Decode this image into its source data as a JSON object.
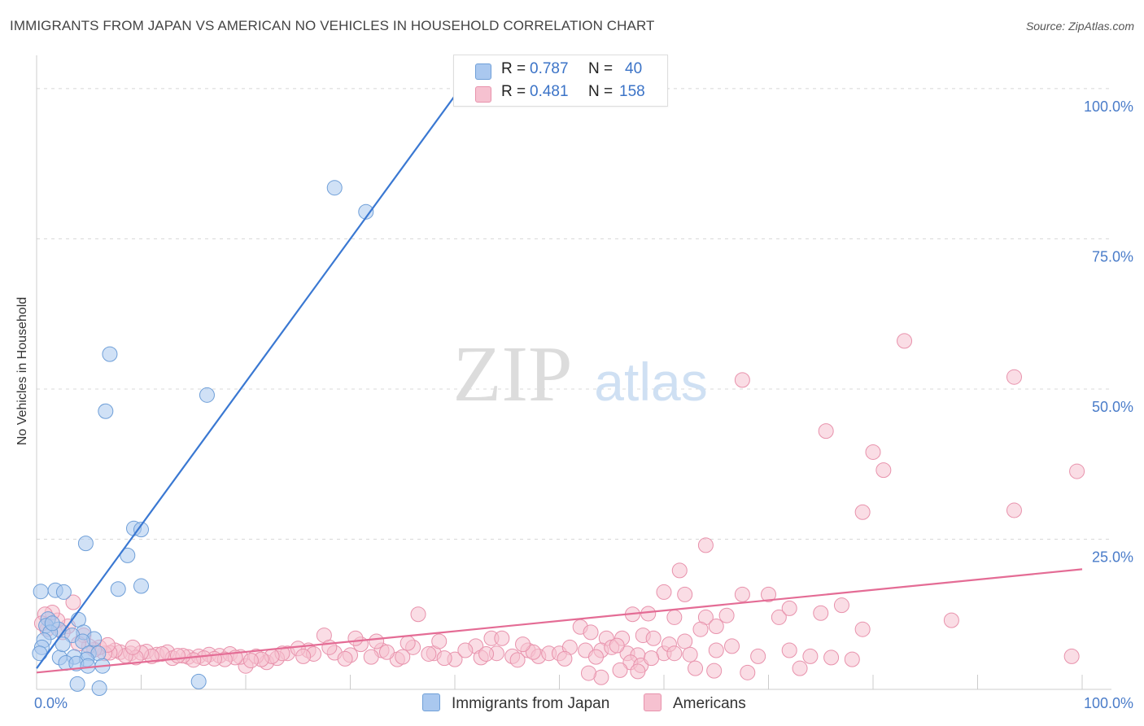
{
  "title": "IMMIGRANTS FROM JAPAN VS AMERICAN NO VEHICLES IN HOUSEHOLD CORRELATION CHART",
  "source": "Source: ZipAtlas.com",
  "watermark": {
    "zip": "ZIP",
    "atlas": "atlas"
  },
  "colors": {
    "blue_fill": "#aac8ef",
    "blue_stroke": "#6f9fd8",
    "blue_line": "#3a78d2",
    "pink_fill": "#f6c1d0",
    "pink_stroke": "#e892ac",
    "pink_line": "#e46c95",
    "tick_label": "#4a7cc9",
    "grid": "#d8d8d8"
  },
  "legend_top": [
    {
      "r_label": "R =",
      "r_value": "0.787",
      "n_label": "N =",
      "n_value": "40"
    },
    {
      "r_label": "R =",
      "r_value": "0.481",
      "n_label": "N =",
      "n_value": "158"
    }
  ],
  "chart_data": {
    "type": "scatter",
    "title": "IMMIGRANTS FROM JAPAN VS AMERICAN NO VEHICLES IN HOUSEHOLD CORRELATION CHART",
    "xlabel": "",
    "ylabel": "No Vehicles in Household",
    "xlim": [
      0,
      100
    ],
    "ylim": [
      0,
      105
    ],
    "x_tick_labels": [
      {
        "value": 0,
        "label": "0.0%"
      },
      {
        "value": 100,
        "label": "100.0%"
      }
    ],
    "y_tick_labels": [
      {
        "value": 25,
        "label": "25.0%"
      },
      {
        "value": 50,
        "label": "50.0%"
      },
      {
        "value": 75,
        "label": "75.0%"
      },
      {
        "value": 100,
        "label": "100.0%"
      }
    ],
    "legend": [
      "Immigrants from Japan",
      "Americans"
    ],
    "series": [
      {
        "name": "Immigrants from Japan",
        "R": 0.787,
        "N": 40,
        "trend": {
          "x0": 0,
          "y0": 3.5,
          "x1": 40.5,
          "y1": 100
        },
        "points": [
          [
            28.5,
            83.5
          ],
          [
            31.5,
            79.5
          ],
          [
            7.0,
            55.8
          ],
          [
            6.6,
            46.3
          ],
          [
            16.3,
            49.0
          ],
          [
            9.3,
            26.8
          ],
          [
            10.0,
            26.6
          ],
          [
            4.7,
            24.3
          ],
          [
            8.7,
            22.3
          ],
          [
            7.8,
            16.7
          ],
          [
            10.0,
            17.2
          ],
          [
            0.4,
            16.3
          ],
          [
            1.8,
            16.5
          ],
          [
            2.6,
            16.2
          ],
          [
            1.1,
            11.7
          ],
          [
            4.0,
            11.6
          ],
          [
            0.9,
            10.6
          ],
          [
            2.1,
            10.0
          ],
          [
            1.3,
            9.5
          ],
          [
            4.5,
            9.5
          ],
          [
            0.7,
            8.2
          ],
          [
            3.4,
            9.0
          ],
          [
            5.5,
            8.4
          ],
          [
            4.4,
            8.0
          ],
          [
            0.5,
            7.0
          ],
          [
            5.0,
            6.0
          ],
          [
            5.9,
            6.0
          ],
          [
            2.2,
            5.3
          ],
          [
            3.6,
            5.4
          ],
          [
            4.8,
            5.0
          ],
          [
            2.8,
            4.4
          ],
          [
            3.8,
            4.3
          ],
          [
            6.3,
            3.9
          ],
          [
            4.9,
            3.9
          ],
          [
            3.9,
            0.9
          ],
          [
            15.5,
            1.3
          ],
          [
            6.0,
            0.2
          ],
          [
            1.5,
            11.0
          ],
          [
            2.5,
            7.5
          ],
          [
            0.3,
            6.0
          ]
        ]
      },
      {
        "name": "Americans",
        "R": 0.481,
        "N": 158,
        "trend": {
          "x0": 0,
          "y0": 2.8,
          "x1": 100,
          "y1": 20.0
        },
        "points": [
          [
            83.0,
            58.0
          ],
          [
            93.5,
            52.0
          ],
          [
            67.5,
            51.5
          ],
          [
            75.5,
            43.0
          ],
          [
            80.0,
            39.5
          ],
          [
            81.0,
            36.5
          ],
          [
            99.5,
            36.3
          ],
          [
            79.0,
            29.5
          ],
          [
            93.5,
            29.8
          ],
          [
            64.0,
            24.0
          ],
          [
            61.5,
            19.8
          ],
          [
            60.0,
            16.2
          ],
          [
            62.0,
            15.8
          ],
          [
            67.5,
            15.8
          ],
          [
            70.0,
            15.8
          ],
          [
            57.0,
            12.5
          ],
          [
            58.5,
            12.6
          ],
          [
            61.0,
            12.0
          ],
          [
            64.0,
            12.0
          ],
          [
            66.0,
            12.3
          ],
          [
            71.0,
            12.0
          ],
          [
            72.0,
            13.5
          ],
          [
            75.0,
            12.7
          ],
          [
            77.0,
            14.0
          ],
          [
            87.5,
            11.5
          ],
          [
            63.5,
            10.0
          ],
          [
            65.0,
            10.5
          ],
          [
            79.0,
            10.0
          ],
          [
            52.0,
            10.4
          ],
          [
            53.0,
            9.5
          ],
          [
            54.5,
            8.5
          ],
          [
            56.0,
            8.5
          ],
          [
            58.0,
            9.0
          ],
          [
            59.0,
            8.5
          ],
          [
            66.5,
            7.2
          ],
          [
            20.0,
            3.9
          ],
          [
            22.0,
            4.5
          ],
          [
            24.0,
            6.0
          ],
          [
            26.0,
            6.5
          ],
          [
            27.5,
            9.0
          ],
          [
            30.0,
            5.7
          ],
          [
            31.0,
            7.5
          ],
          [
            33.0,
            6.5
          ],
          [
            34.5,
            5.0
          ],
          [
            36.0,
            7.0
          ],
          [
            36.5,
            12.5
          ],
          [
            38.0,
            6.0
          ],
          [
            40.0,
            5.0
          ],
          [
            42.0,
            7.2
          ],
          [
            43.5,
            8.5
          ],
          [
            44.0,
            6.0
          ],
          [
            45.5,
            5.5
          ],
          [
            47.0,
            6.5
          ],
          [
            48.0,
            5.5
          ],
          [
            49.0,
            6.0
          ],
          [
            50.0,
            6.0
          ],
          [
            51.0,
            7.0
          ],
          [
            52.5,
            6.5
          ],
          [
            54.0,
            6.5
          ],
          [
            55.0,
            7.0
          ],
          [
            56.5,
            6.0
          ],
          [
            57.5,
            5.7
          ],
          [
            60.0,
            6.0
          ],
          [
            62.0,
            8.0
          ],
          [
            65.0,
            6.5
          ],
          [
            69.0,
            5.5
          ],
          [
            72.0,
            6.5
          ],
          [
            74.0,
            5.5
          ],
          [
            76.0,
            5.3
          ],
          [
            78.0,
            5.0
          ],
          [
            99.0,
            5.5
          ],
          [
            8.0,
            6.2
          ],
          [
            9.0,
            6.0
          ],
          [
            10.5,
            6.3
          ],
          [
            11.5,
            5.8
          ],
          [
            12.5,
            6.2
          ],
          [
            13.0,
            5.2
          ],
          [
            14.5,
            5.4
          ],
          [
            15.5,
            5.5
          ],
          [
            16.5,
            5.8
          ],
          [
            17.5,
            5.6
          ],
          [
            18.5,
            5.9
          ],
          [
            19.5,
            5.4
          ],
          [
            21.0,
            5.5
          ],
          [
            23.0,
            5.2
          ],
          [
            25.0,
            6.8
          ],
          [
            26.5,
            5.9
          ],
          [
            28.5,
            6.1
          ],
          [
            29.5,
            5.1
          ],
          [
            32.0,
            5.4
          ],
          [
            33.5,
            6.2
          ],
          [
            35.0,
            5.4
          ],
          [
            37.5,
            5.9
          ],
          [
            39.0,
            5.2
          ],
          [
            41.0,
            6.5
          ],
          [
            42.5,
            5.3
          ],
          [
            43.0,
            5.9
          ],
          [
            46.0,
            4.9
          ],
          [
            47.5,
            6.2
          ],
          [
            50.5,
            5.1
          ],
          [
            53.5,
            5.4
          ],
          [
            55.5,
            7.3
          ],
          [
            56.8,
            4.5
          ],
          [
            57.8,
            4.0
          ],
          [
            58.8,
            5.2
          ],
          [
            60.5,
            7.5
          ],
          [
            61.0,
            6.0
          ],
          [
            62.5,
            5.8
          ],
          [
            44.5,
            8.5
          ],
          [
            46.5,
            7.5
          ],
          [
            38.5,
            8.0
          ],
          [
            35.5,
            7.7
          ],
          [
            32.5,
            8.0
          ],
          [
            30.5,
            8.5
          ],
          [
            28.0,
            7.0
          ],
          [
            25.5,
            5.5
          ],
          [
            23.5,
            6.0
          ],
          [
            22.5,
            5.5
          ],
          [
            21.5,
            5.0
          ],
          [
            20.5,
            4.8
          ],
          [
            19.0,
            5.3
          ],
          [
            18.0,
            5.0
          ],
          [
            17.0,
            5.1
          ],
          [
            16.0,
            5.2
          ],
          [
            15.0,
            4.9
          ],
          [
            14.0,
            5.6
          ],
          [
            13.5,
            5.6
          ],
          [
            12.0,
            5.9
          ],
          [
            11.0,
            5.5
          ],
          [
            10.0,
            6.1
          ],
          [
            9.5,
            5.3
          ],
          [
            8.5,
            5.6
          ],
          [
            7.5,
            6.5
          ],
          [
            7.0,
            6.1
          ],
          [
            6.5,
            6.0
          ],
          [
            6.0,
            7.0
          ],
          [
            5.5,
            6.6
          ],
          [
            5.0,
            7.2
          ],
          [
            4.5,
            9.0
          ],
          [
            4.0,
            7.6
          ],
          [
            3.5,
            14.5
          ],
          [
            3.0,
            10.5
          ],
          [
            2.5,
            9.5
          ],
          [
            2.0,
            11.5
          ],
          [
            1.5,
            12.8
          ],
          [
            1.0,
            10.0
          ],
          [
            0.8,
            12.5
          ],
          [
            0.5,
            11.0
          ],
          [
            54.0,
            2.0
          ],
          [
            57.5,
            3.0
          ],
          [
            63.0,
            3.5
          ],
          [
            68.0,
            2.8
          ],
          [
            73.0,
            3.5
          ],
          [
            6.8,
            7.4
          ],
          [
            9.2,
            7.0
          ],
          [
            52.8,
            2.7
          ],
          [
            55.8,
            3.2
          ],
          [
            64.8,
            3.1
          ]
        ]
      }
    ]
  }
}
